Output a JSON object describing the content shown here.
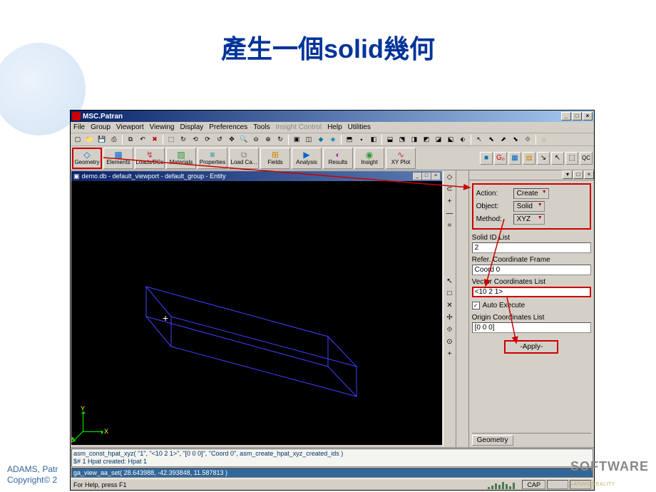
{
  "slide": {
    "title": "產生一個solid幾何",
    "footer1": "ADAMS, Patr",
    "footer2": "Copyright© 2",
    "logo": "SOFTWARE",
    "logo_sub": "LATING REALITY"
  },
  "window": {
    "title": "MSC.Patran"
  },
  "menu": [
    "File",
    "Group",
    "Viewport",
    "Viewing",
    "Display",
    "Preferences",
    "Tools",
    "Insight Control",
    "Help",
    "Utilities"
  ],
  "shelf": [
    {
      "label": "Geometry",
      "icon": "◇",
      "color": "#06c",
      "active": true
    },
    {
      "label": "Elements",
      "icon": "▦",
      "color": "#06c"
    },
    {
      "label": "Loads/BCs",
      "icon": "↯",
      "color": "#c33"
    },
    {
      "label": "Materials",
      "icon": "▨",
      "color": "#393"
    },
    {
      "label": "Properties",
      "icon": "≡",
      "color": "#08a"
    },
    {
      "label": "Load Ca...",
      "icon": "⧉",
      "color": "#888"
    },
    {
      "label": "Fields",
      "icon": "⊞",
      "color": "#c80"
    },
    {
      "label": "Analysis",
      "icon": "▶",
      "color": "#06c"
    },
    {
      "label": "Results",
      "icon": "◐",
      "color": "#a3a"
    },
    {
      "label": "Insight",
      "icon": "◉",
      "color": "#393"
    },
    {
      "label": "XY Plot",
      "icon": "∿",
      "color": "#c33"
    }
  ],
  "viewport": {
    "title": "demo.db - default_viewport - default_group - Entity",
    "axes": {
      "x": "X",
      "y": "Y",
      "z": "Z"
    }
  },
  "form": {
    "action_label": "Action:",
    "action_value": "Create",
    "object_label": "Object:",
    "object_value": "Solid",
    "method_label": "Method:",
    "method_value": "XYZ",
    "solid_id_label": "Solid ID List",
    "solid_id_value": "2",
    "coord_label": "Refer. Coordinate Frame",
    "coord_value": "Coord 0",
    "vector_label": "Vector Coordinates List",
    "vector_value": "<10 2 1>",
    "auto_exe": "Auto Execute",
    "origin_label": "Origin Coordinates List",
    "origin_value": "[0 0 0]",
    "apply": "-Apply-",
    "tab": "Geometry"
  },
  "cmd": {
    "line1": "asm_const_hpat_xyz( \"1\", \"<10 2 1>\", \"[0 0 0]\", \"Coord 0\", asm_create_hpat_xyz_created_ids )",
    "line2": "$# 1 Hpat created: Hpat 1",
    "input": "ga_view_aa_set( 28.643988, -42.393848, 11.587813 )"
  },
  "status": {
    "help": "For Help, press F1",
    "cap": "CAP"
  }
}
